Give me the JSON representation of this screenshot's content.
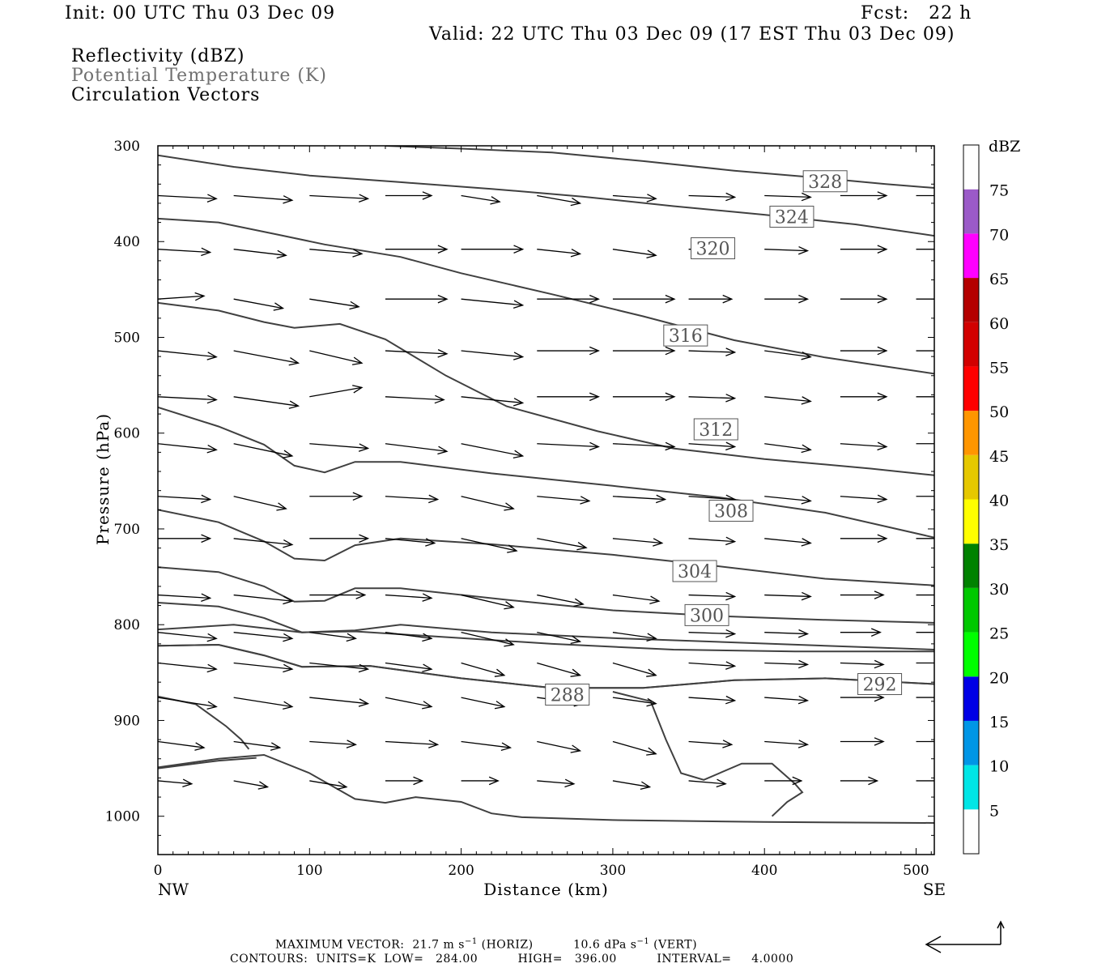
{
  "header": {
    "init": "Init: 00 UTC Thu 03 Dec 09",
    "fcst": "Fcst:   22 h",
    "valid": "Valid: 22 UTC Thu 03 Dec 09 (17 EST Thu 03 Dec 09)"
  },
  "fields": [
    {
      "label": "Reflectivity (dBZ)",
      "color": "#000000"
    },
    {
      "label": "Potential Temperature (K)",
      "color": "#707070"
    },
    {
      "label": "Circulation Vectors",
      "color": "#000000"
    }
  ],
  "chart_data": {
    "type": "cross-section",
    "xlabel": "Distance (km)",
    "ylabel": "Pressure (hPa)",
    "xlim": [
      0,
      512
    ],
    "ylim": [
      1040,
      300
    ],
    "x_ticks": [
      0,
      100,
      200,
      300,
      400,
      500
    ],
    "y_ticks": [
      300,
      400,
      500,
      600,
      700,
      800,
      900,
      1000
    ],
    "x_end_labels": {
      "left": "NW",
      "right": "SE"
    },
    "grid": false,
    "contour_color": "#404040",
    "isentropes": [
      {
        "label": "328",
        "lx": 440,
        "lp": 337,
        "pts": [
          [
            150,
            300
          ],
          [
            200,
            303
          ],
          [
            260,
            307
          ],
          [
            320,
            316
          ],
          [
            380,
            326
          ],
          [
            440,
            334
          ],
          [
            480,
            340
          ],
          [
            512,
            344
          ]
        ]
      },
      {
        "label": "324",
        "lx": 418,
        "lp": 374,
        "pts": [
          [
            0,
            310
          ],
          [
            50,
            322
          ],
          [
            100,
            331
          ],
          [
            160,
            338
          ],
          [
            220,
            345
          ],
          [
            280,
            353
          ],
          [
            340,
            363
          ],
          [
            400,
            372
          ],
          [
            460,
            382
          ],
          [
            512,
            394
          ]
        ]
      },
      {
        "label": "320",
        "lx": 366,
        "lp": 407,
        "pts": [
          [
            0,
            376
          ],
          [
            40,
            380
          ],
          [
            80,
            393
          ],
          [
            110,
            403
          ],
          [
            160,
            416
          ],
          [
            200,
            433
          ],
          [
            260,
            455
          ],
          [
            320,
            478
          ],
          [
            380,
            503
          ],
          [
            440,
            521
          ],
          [
            512,
            538
          ]
        ]
      },
      {
        "label": "316",
        "lx": 348,
        "lp": 498,
        "pts": [
          [
            0,
            464
          ],
          [
            40,
            472
          ],
          [
            70,
            484
          ],
          [
            90,
            490
          ],
          [
            120,
            486
          ],
          [
            150,
            502
          ],
          [
            190,
            540
          ],
          [
            230,
            572
          ],
          [
            290,
            598
          ],
          [
            340,
            616
          ],
          [
            400,
            627
          ],
          [
            470,
            637
          ],
          [
            512,
            644
          ]
        ]
      },
      {
        "label": "312",
        "lx": 368,
        "lp": 596,
        "pts": [
          [
            0,
            573
          ],
          [
            40,
            593
          ],
          [
            70,
            612
          ],
          [
            90,
            634
          ],
          [
            110,
            641
          ],
          [
            130,
            630
          ],
          [
            160,
            630
          ],
          [
            220,
            642
          ],
          [
            300,
            655
          ],
          [
            370,
            667
          ],
          [
            440,
            683
          ],
          [
            512,
            709
          ]
        ]
      },
      {
        "label": "308",
        "lx": 378,
        "lp": 681,
        "pts": [
          [
            0,
            680
          ],
          [
            40,
            693
          ],
          [
            70,
            713
          ],
          [
            90,
            731
          ],
          [
            110,
            733
          ],
          [
            130,
            717
          ],
          [
            160,
            710
          ],
          [
            220,
            716
          ],
          [
            300,
            727
          ],
          [
            370,
            739
          ],
          [
            440,
            752
          ],
          [
            512,
            759
          ]
        ]
      },
      {
        "label": "304",
        "lx": 354,
        "lp": 744,
        "pts": [
          [
            0,
            740
          ],
          [
            40,
            745
          ],
          [
            70,
            760
          ],
          [
            90,
            776
          ],
          [
            110,
            775
          ],
          [
            130,
            762
          ],
          [
            160,
            762
          ],
          [
            230,
            774
          ],
          [
            300,
            785
          ],
          [
            370,
            791
          ],
          [
            440,
            795
          ],
          [
            512,
            798
          ]
        ]
      },
      {
        "label": "300",
        "lx": 362,
        "lp": 790,
        "pts": [
          [
            0,
            777
          ],
          [
            40,
            781
          ],
          [
            70,
            793
          ],
          [
            95,
            808
          ],
          [
            130,
            807
          ],
          [
            180,
            812
          ],
          [
            260,
            820
          ],
          [
            340,
            826
          ],
          [
            420,
            828
          ],
          [
            512,
            828
          ]
        ]
      },
      {
        "label": "",
        "lx": 0,
        "lp": 0,
        "pts": [
          [
            0,
            805
          ],
          [
            50,
            800
          ],
          [
            95,
            808
          ],
          [
            130,
            806
          ],
          [
            160,
            800
          ],
          [
            220,
            808
          ],
          [
            300,
            814
          ],
          [
            512,
            826
          ]
        ]
      },
      {
        "label": "",
        "lx": 0,
        "lp": 0,
        "pts": [
          [
            0,
            822
          ],
          [
            40,
            821
          ],
          [
            70,
            832
          ],
          [
            95,
            844
          ],
          [
            140,
            843
          ],
          [
            200,
            856
          ],
          [
            260,
            866
          ],
          [
            320,
            866
          ],
          [
            380,
            858
          ],
          [
            440,
            856
          ],
          [
            512,
            862
          ]
        ]
      },
      {
        "label": "292",
        "lx": 476,
        "lp": 862,
        "pts": [
          [
            0,
            822
          ],
          [
            40,
            821
          ],
          [
            70,
            832
          ],
          [
            95,
            844
          ],
          [
            140,
            843
          ],
          [
            200,
            856
          ],
          [
            260,
            866
          ],
          [
            320,
            866
          ],
          [
            380,
            858
          ],
          [
            440,
            856
          ],
          [
            512,
            862
          ]
        ]
      },
      {
        "label": "288",
        "lx": 270,
        "lp": 873,
        "pts": [
          [
            0,
            875
          ],
          [
            25,
            883
          ],
          [
            45,
            906
          ],
          [
            55,
            920
          ],
          [
            60,
            930
          ]
        ]
      },
      {
        "label": "",
        "lx": 0,
        "lp": 0,
        "pts": [
          [
            0,
            949
          ],
          [
            40,
            940
          ],
          [
            70,
            936
          ],
          [
            100,
            955
          ],
          [
            130,
            982
          ],
          [
            150,
            986
          ],
          [
            170,
            980
          ],
          [
            200,
            985
          ],
          [
            220,
            997
          ],
          [
            240,
            1001
          ],
          [
            300,
            1004
          ],
          [
            400,
            1006
          ],
          [
            512,
            1007
          ]
        ]
      },
      {
        "label": "",
        "lx": 0,
        "lp": 0,
        "pts": [
          [
            0,
            950
          ],
          [
            40,
            942
          ],
          [
            65,
            939
          ]
        ]
      },
      {
        "label": "",
        "lx": 0,
        "lp": 0,
        "pts": [
          [
            300,
            870
          ],
          [
            325,
            880
          ],
          [
            335,
            920
          ],
          [
            345,
            955
          ],
          [
            360,
            962
          ],
          [
            385,
            945
          ],
          [
            405,
            945
          ],
          [
            420,
            966
          ],
          [
            425,
            975
          ],
          [
            415,
            985
          ],
          [
            405,
            1000
          ]
        ]
      }
    ],
    "vectors": {
      "rows_p": [
        352,
        408,
        460,
        514,
        562,
        611,
        666,
        710,
        769,
        808,
        840,
        876,
        922,
        963
      ],
      "cols_x": [
        0,
        50,
        100,
        150,
        200,
        250,
        300,
        350,
        400,
        450,
        500
      ],
      "u": [
        [
          38,
          38,
          38,
          30,
          25,
          28,
          28,
          30,
          30,
          30,
          18
        ],
        [
          34,
          34,
          34,
          40,
          40,
          28,
          28,
          28,
          28,
          30,
          18
        ],
        [
          30,
          32,
          32,
          40,
          40,
          40,
          40,
          28,
          28,
          30,
          18
        ],
        [
          38,
          42,
          34,
          40,
          40,
          40,
          40,
          30,
          30,
          30,
          18
        ],
        [
          38,
          42,
          34,
          38,
          40,
          40,
          40,
          30,
          30,
          30,
          18
        ],
        [
          38,
          38,
          38,
          40,
          40,
          40,
          40,
          30,
          30,
          30,
          18
        ],
        [
          34,
          34,
          34,
          34,
          34,
          34,
          34,
          30,
          30,
          30,
          18
        ],
        [
          34,
          38,
          38,
          32,
          36,
          32,
          32,
          30,
          30,
          30,
          18
        ],
        [
          34,
          38,
          36,
          30,
          34,
          30,
          30,
          30,
          30,
          28,
          18
        ],
        [
          38,
          38,
          30,
          30,
          34,
          28,
          28,
          30,
          28,
          26,
          18
        ],
        [
          38,
          38,
          38,
          30,
          28,
          28,
          28,
          30,
          28,
          28,
          18
        ],
        [
          38,
          38,
          38,
          30,
          28,
          30,
          28,
          30,
          28,
          28,
          18
        ],
        [
          30,
          30,
          30,
          34,
          32,
          28,
          28,
          28,
          28,
          28,
          18
        ],
        [
          22,
          22,
          24,
          24,
          24,
          24,
          24,
          24,
          24,
          24,
          18
        ]
      ],
      "v": [
        [
          -2,
          -3,
          -2,
          0,
          -4,
          -5,
          -2,
          -1,
          -1,
          0,
          0
        ],
        [
          -2,
          -4,
          -3,
          0,
          0,
          -3,
          -4,
          0,
          -1,
          0,
          0
        ],
        [
          2,
          -6,
          -5,
          0,
          -4,
          0,
          0,
          0,
          0,
          0,
          0
        ],
        [
          -4,
          -8,
          -8,
          -2,
          -4,
          0,
          0,
          -1,
          -4,
          0,
          0
        ],
        [
          -2,
          -6,
          6,
          -2,
          -4,
          0,
          0,
          -1,
          -3,
          0,
          0
        ],
        [
          -4,
          -8,
          -3,
          -5,
          -8,
          -2,
          -2,
          -2,
          -4,
          -2,
          0
        ],
        [
          -2,
          -8,
          0,
          -2,
          -8,
          -3,
          -2,
          -2,
          -3,
          -2,
          0
        ],
        [
          0,
          -4,
          0,
          -3,
          -8,
          -6,
          -3,
          -2,
          -3,
          0,
          0
        ],
        [
          -2,
          -4,
          0,
          -2,
          -8,
          -6,
          -4,
          -1,
          -1,
          0,
          0
        ],
        [
          -4,
          -4,
          -4,
          -4,
          -8,
          -6,
          -4,
          -1,
          -1,
          0,
          0
        ],
        [
          -4,
          -4,
          -4,
          -4,
          -8,
          -8,
          -8,
          -2,
          -1,
          -1,
          0
        ],
        [
          -6,
          -6,
          -4,
          -6,
          -6,
          -4,
          -4,
          -2,
          -2,
          0,
          0
        ],
        [
          -4,
          -4,
          -2,
          -2,
          -4,
          -6,
          -8,
          -2,
          -2,
          0,
          0
        ],
        [
          -2,
          -4,
          -4,
          0,
          0,
          -2,
          -4,
          -2,
          0,
          0,
          0
        ]
      ]
    },
    "colorbar": {
      "title": "dBZ",
      "levels": [
        5,
        10,
        15,
        20,
        25,
        30,
        35,
        40,
        45,
        50,
        55,
        60,
        65,
        70,
        75
      ],
      "colors": [
        "#ffffff",
        "#00e6e6",
        "#0096e6",
        "#0000e6",
        "#00ff00",
        "#00c800",
        "#008200",
        "#ffff00",
        "#e6c800",
        "#ff9600",
        "#ff0000",
        "#d20000",
        "#b40000",
        "#ff00ff",
        "#9b5ac8",
        "#ffffff"
      ]
    }
  },
  "footer": {
    "max_vector_label": "MAXIMUM VECTOR:",
    "max_vector_horiz": "21.7 m s",
    "horiz_tag": "(HORIZ)",
    "max_vector_vert": "10.6 dPa s",
    "vert_tag": "(VERT)",
    "exp": "−1",
    "contours": "CONTOURS:  UNITS=K  LOW=   284.00          HIGH=   396.00          INTERVAL=     4.0000"
  }
}
